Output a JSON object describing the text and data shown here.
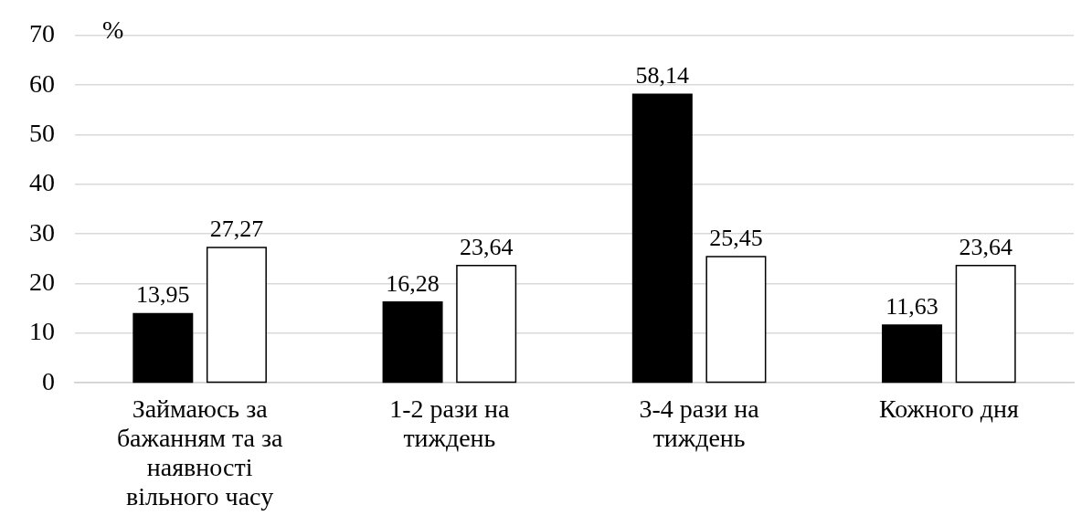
{
  "chart_data": {
    "type": "bar",
    "ylabel": "%",
    "categories": [
      "Займаюсь за бажанням та за наявності вільного часу",
      "1-2 рази на тиждень",
      "3-4 рази на тиждень",
      "Кожного дня"
    ],
    "series": [
      {
        "color": "#000000",
        "values": [
          13.95,
          16.28,
          58.14,
          11.63
        ],
        "value_labels": [
          "13,95",
          "16,28",
          "58,14",
          "11,63"
        ]
      },
      {
        "color": "#ffffff",
        "values": [
          27.27,
          23.64,
          25.45,
          23.64
        ],
        "value_labels": [
          "27,27",
          "23,64",
          "25,45",
          "23,64"
        ]
      }
    ],
    "ylim": [
      0,
      70
    ],
    "yticks": [
      0,
      10,
      20,
      30,
      40,
      50,
      60,
      70
    ],
    "grid": "y",
    "legend": false
  }
}
